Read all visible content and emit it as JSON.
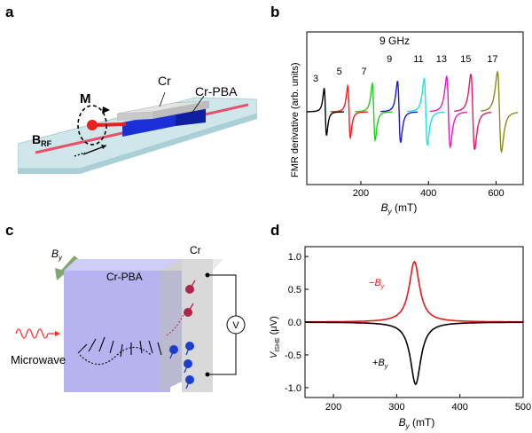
{
  "figure": {
    "panel_labels": {
      "a": "a",
      "b": "b",
      "c": "c",
      "d": "d"
    }
  },
  "panel_a": {
    "cr_label": "Cr",
    "crpba_label": "Cr-PBA",
    "m_label": "M",
    "brf_main": "B",
    "brf_sub": "RF",
    "colors": {
      "strip": "#cfe6ea",
      "block_blue": "#1a2fd6",
      "top_plate": "#d9d9d9",
      "line_red": "#e8506a"
    }
  },
  "panel_b": {
    "ylabel": "FMR derivative (arb. units)",
    "xlabel_var": "B",
    "xlabel_sub": "y",
    "xlabel_unit": "(mT)",
    "freq_header": "9 GHz",
    "xticks": [
      "200",
      "400",
      "600"
    ],
    "chart_data": {
      "type": "line",
      "xlim": [
        40,
        680
      ],
      "series": [
        {
          "name": "3",
          "center": 95,
          "color": "#000000"
        },
        {
          "name": "5",
          "center": 165,
          "color": "#ff1a1a"
        },
        {
          "name": "7",
          "center": 238,
          "color": "#1fd11f"
        },
        {
          "name": "9",
          "center": 313,
          "color": "#1a1acc"
        },
        {
          "name": "11",
          "center": 392,
          "color": "#19e6e6"
        },
        {
          "name": "13",
          "center": 459,
          "color": "#e619c9"
        },
        {
          "name": "15",
          "center": 531,
          "color": "#e61966"
        },
        {
          "name": "17",
          "center": 610,
          "color": "#8c8c1a"
        }
      ]
    }
  },
  "panel_c": {
    "by_main": "B",
    "by_sub": "y",
    "crpba_label": "Cr-PBA",
    "cr_label": "Cr",
    "microwave_label": "Microwave",
    "voltmeter_label": "V",
    "colors": {
      "crpba": "#b6b3f0",
      "cr": "#d9d9d9",
      "microwave": "#ff2a2a",
      "spin_up": "#b0244a",
      "spin_down": "#1a3fcc"
    }
  },
  "panel_d": {
    "ylabel_main": "V",
    "ylabel_sub": "ISHE",
    "ylabel_unit": "(μV)",
    "xlabel_var": "B",
    "xlabel_sub": "y",
    "xlabel_unit": "(mT)",
    "legend_neg_sign": "−",
    "legend_pos_sign": "+",
    "legend_var": "B",
    "legend_sub": "y",
    "xticks": [
      "200",
      "300",
      "400",
      "500"
    ],
    "yticks": [
      "1.0",
      "0.5",
      "0.0",
      "-0.5",
      "-1.0"
    ],
    "chart_data": {
      "type": "line",
      "xlim": [
        155,
        500
      ],
      "ylim": [
        -1.15,
        1.15
      ],
      "series": [
        {
          "name": "-By",
          "center": 328,
          "peak": 0.92,
          "width": 10,
          "color": "#e61919"
        },
        {
          "name": "+By",
          "center": 330,
          "peak": -0.95,
          "width": 10,
          "color": "#000000"
        }
      ]
    }
  }
}
